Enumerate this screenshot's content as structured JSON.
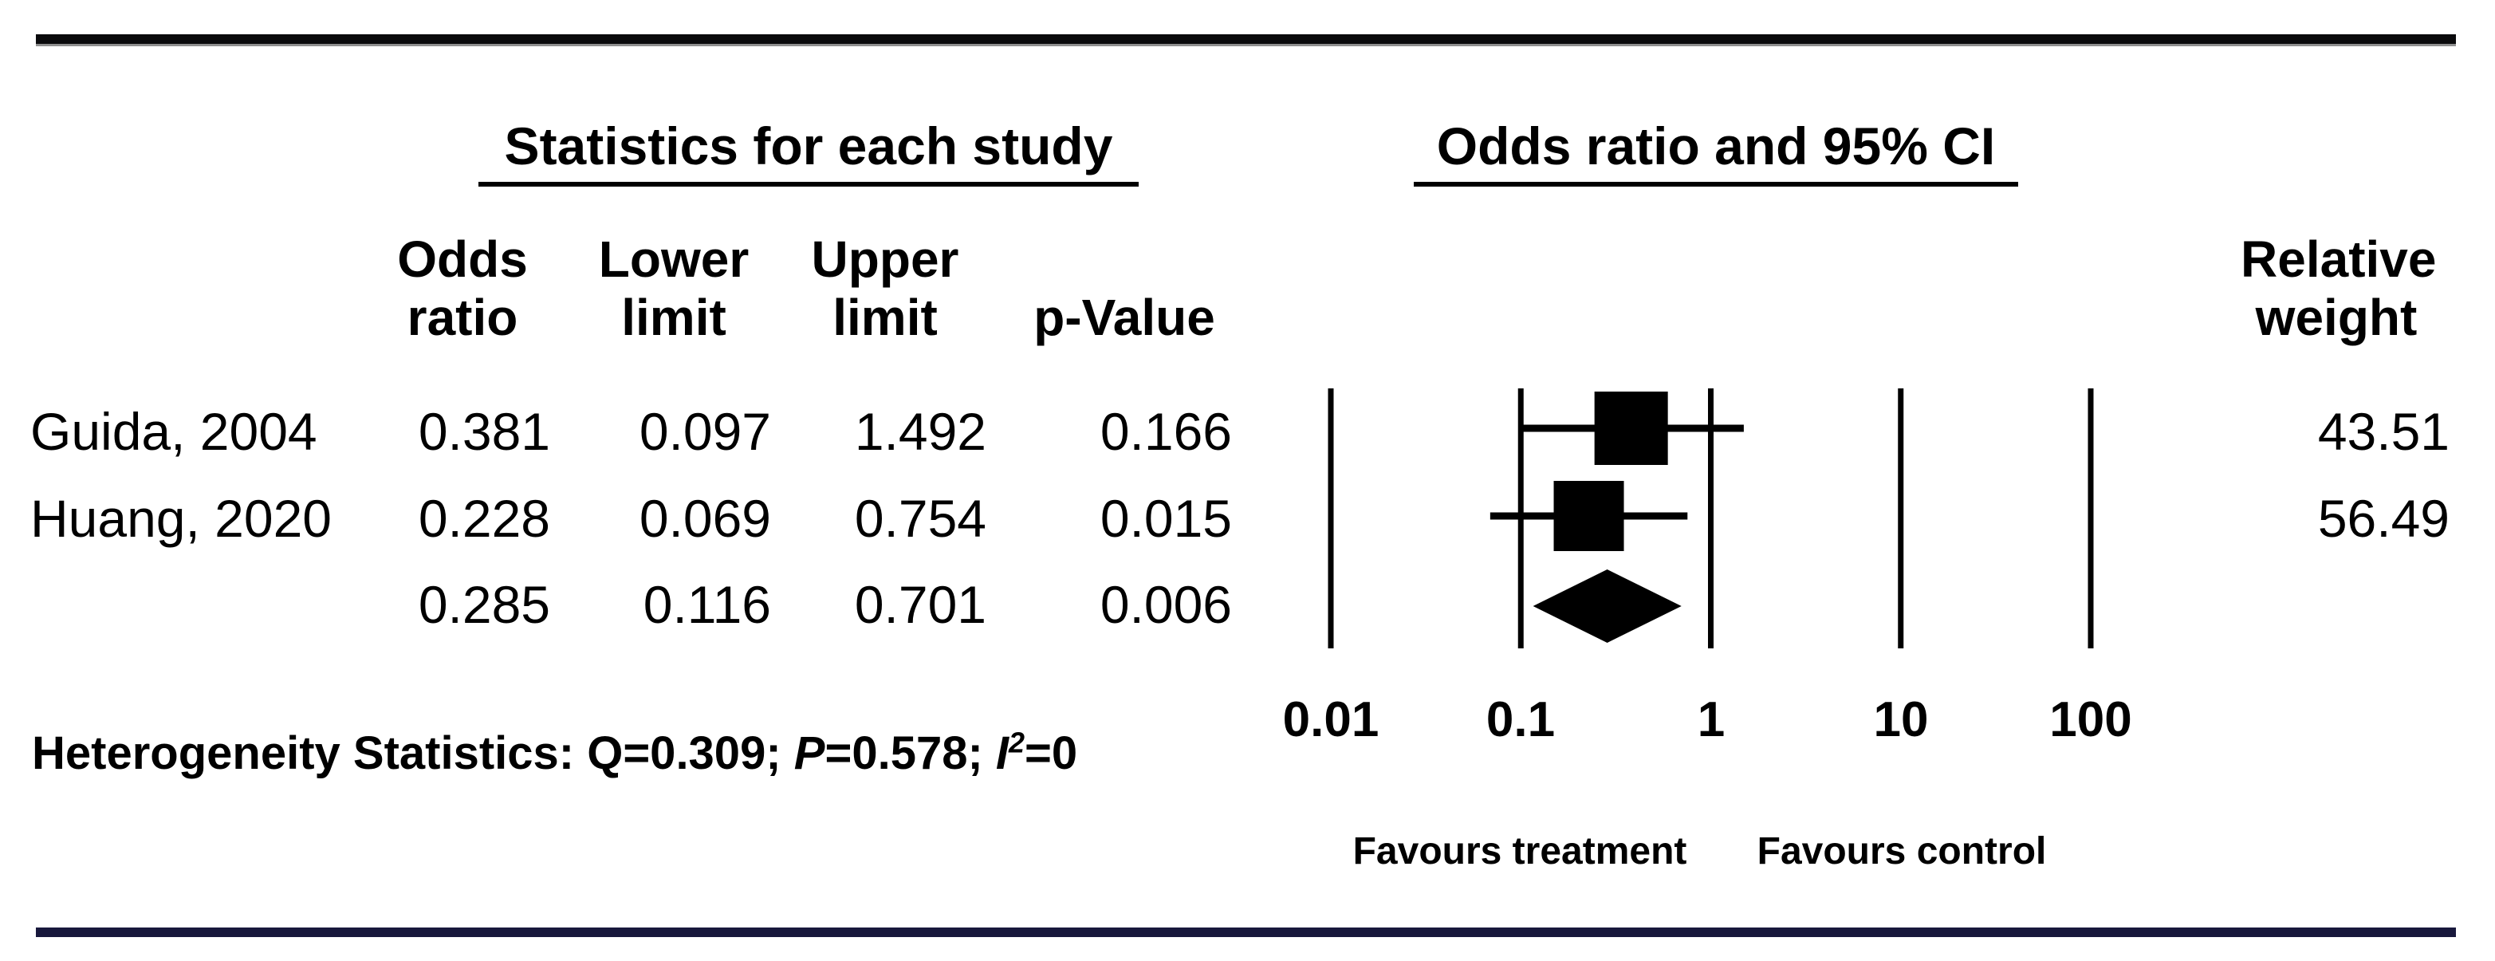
{
  "table": {
    "group_header_left": "Statistics for each study",
    "group_header_right": "Odds ratio and 95% CI",
    "columns": {
      "odds_line1": "Odds",
      "odds_line2": "ratio",
      "lower_line1": "Lower",
      "lower_line2": "limit",
      "upper_line1": "Upper",
      "upper_line2": "limit",
      "p_line2": "p-Value",
      "weight_line1": "Relative",
      "weight_line2": "weight"
    },
    "rows": [
      {
        "study": "Guida, 2004",
        "or": "0.381",
        "lower": "0.097",
        "upper": "1.492",
        "p": "0.166",
        "weight": "43.51"
      },
      {
        "study": "Huang, 2020",
        "or": "0.228",
        "lower": "0.069",
        "upper": "0.754",
        "p": "0.015",
        "weight": "56.49"
      },
      {
        "study": "",
        "or": "0.285",
        "lower": "0.116",
        "upper": "0.701",
        "p": "0.006",
        "weight": ""
      }
    ]
  },
  "heterogeneity": {
    "segments": [
      {
        "t": "Heterogeneity Statistics: Q=0.309; ",
        "italic": false,
        "sup": false
      },
      {
        "t": "P",
        "italic": true,
        "sup": false
      },
      {
        "t": "=0.578; ",
        "italic": false,
        "sup": false
      },
      {
        "t": "I",
        "italic": true,
        "sup": false
      },
      {
        "t": "2",
        "italic": true,
        "sup": true
      },
      {
        "t": "=0",
        "italic": false,
        "sup": false
      }
    ]
  },
  "axis": {
    "favours_left": "Favours treatment",
    "favours_right": "Favours control"
  },
  "chart_data": {
    "type": "forest",
    "x_scale": "log10",
    "xlim": [
      0.01,
      100
    ],
    "x_ticks": [
      0.01,
      0.1,
      1,
      10,
      100
    ],
    "grid": "vertical-reference-lines",
    "studies": [
      {
        "name": "Guida, 2004",
        "or": 0.381,
        "lower": 0.097,
        "upper": 1.492,
        "p": 0.166,
        "weight": 43.51
      },
      {
        "name": "Huang, 2020",
        "or": 0.228,
        "lower": 0.069,
        "upper": 0.754,
        "p": 0.015,
        "weight": 56.49
      }
    ],
    "summary": {
      "or": 0.285,
      "lower": 0.116,
      "upper": 0.701,
      "p": 0.006
    },
    "heterogeneity": {
      "Q": 0.309,
      "P": 0.578,
      "I2": 0
    },
    "favours_left": "Favours treatment",
    "favours_right": "Favours control",
    "marker_color": "#000000"
  }
}
